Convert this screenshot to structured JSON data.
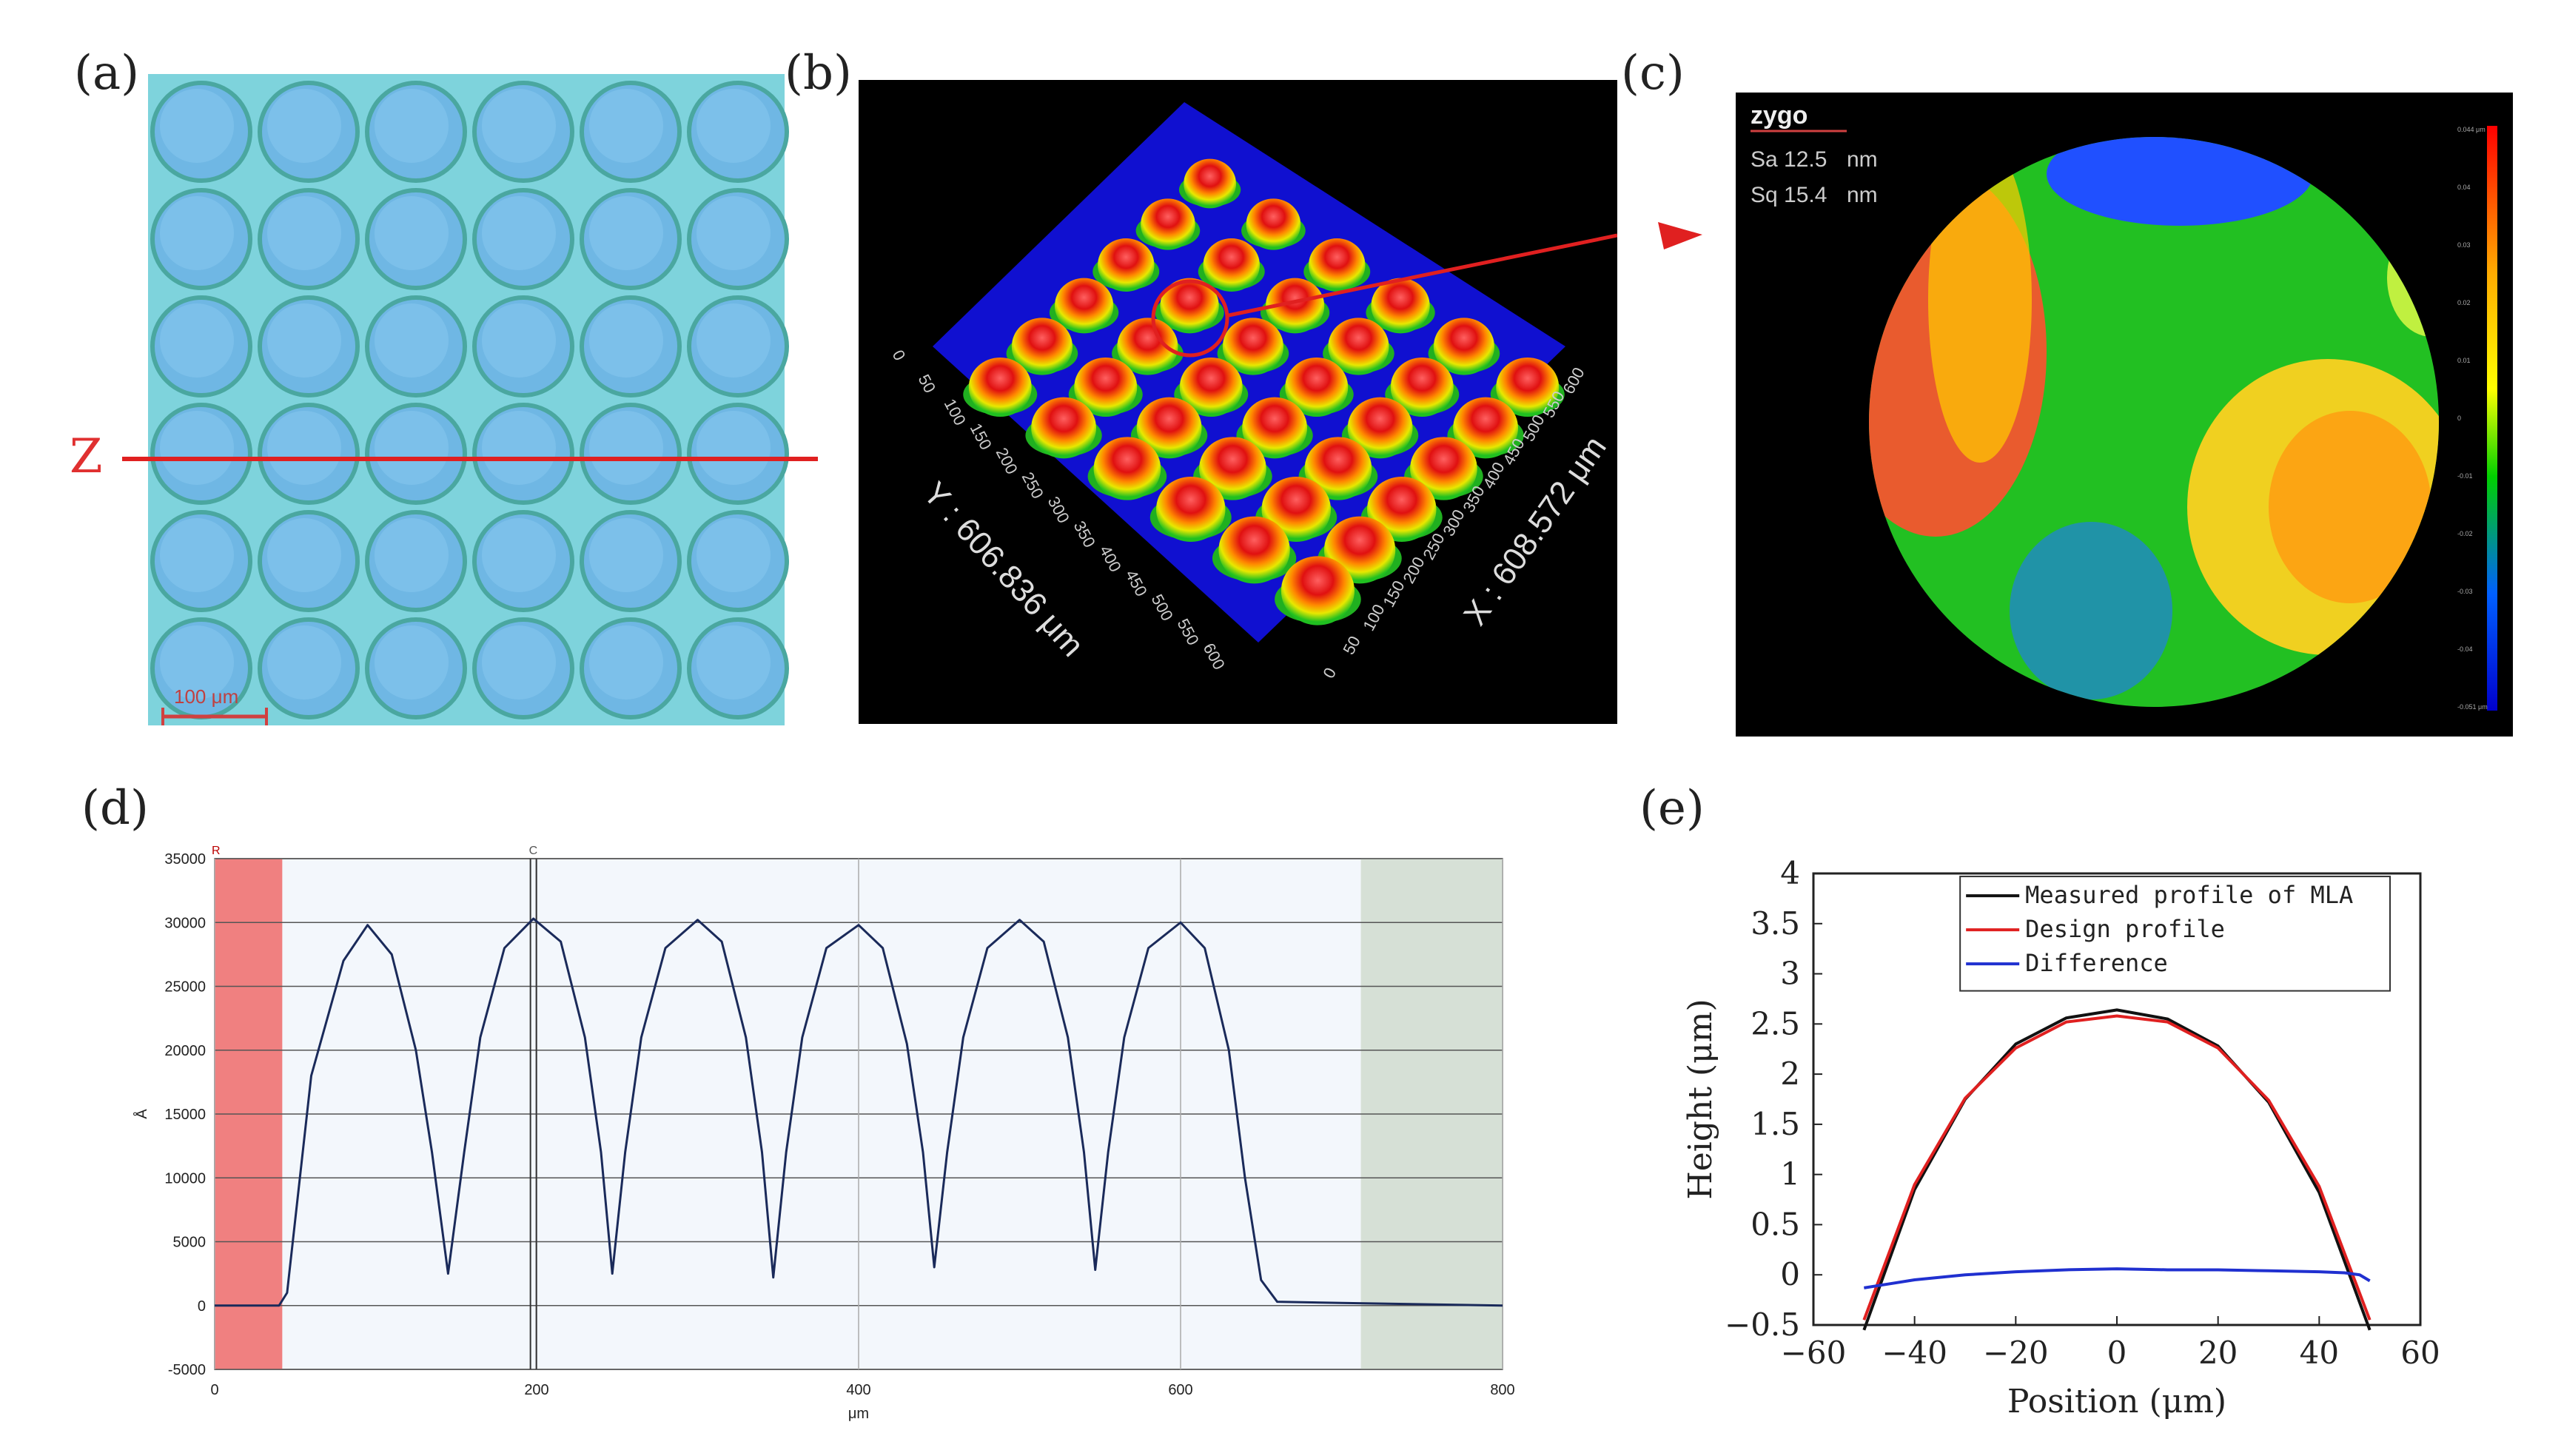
{
  "panels": {
    "a": {
      "label": "(a)",
      "z_label": "Z",
      "scale_bar": "100 μm"
    },
    "b": {
      "label": "(b)",
      "y_axis_label": "Y : 606.836 μm",
      "x_axis_label": "X : 608.572 μm",
      "y_ticks": [
        "0",
        "50",
        "100",
        "150",
        "200",
        "250",
        "300",
        "350",
        "400",
        "450",
        "500",
        "550",
        "600"
      ],
      "x_ticks": [
        "0",
        "50",
        "100",
        "150",
        "200",
        "250",
        "300",
        "350",
        "400",
        "450",
        "500",
        "550",
        "600"
      ]
    },
    "c": {
      "label": "(c)",
      "brand": "zygo",
      "sa_label": "Sa 12.5",
      "sa_unit": "nm",
      "sq_label": "Sq 15.4",
      "sq_unit": "nm",
      "scale_ticks": [
        "0.044 μm",
        "0.04",
        "0.03",
        "0.02",
        "0.01",
        "0",
        "-0.01",
        "-0.02",
        "-0.03",
        "-0.04",
        "-0.051 μm"
      ]
    },
    "d": {
      "label": "(d)"
    },
    "e": {
      "label": "(e)"
    }
  },
  "chart_data": [
    {
      "type": "line",
      "panel": "d",
      "xlabel": "μm",
      "ylabel": "Å",
      "xlim": [
        0,
        800
      ],
      "ylim": [
        -5000,
        35000
      ],
      "xticks": [
        "0",
        "200",
        "400",
        "600",
        "800"
      ],
      "yticks": [
        "-5000",
        "0",
        "5000",
        "10000",
        "15000",
        "20000",
        "25000",
        "30000",
        "35000"
      ],
      "markers": [
        "R",
        "C"
      ],
      "cursor_c_x": 198,
      "shaded_regions": [
        {
          "from": 0,
          "to": 42,
          "color": "#f08080"
        },
        {
          "from": 712,
          "to": 800,
          "color": "#d6e0d6"
        }
      ],
      "series": [
        {
          "x": [
            0,
            40,
            45,
            60,
            80,
            95,
            110,
            125,
            135,
            145,
            155,
            165,
            180,
            198,
            215,
            230,
            240,
            247,
            255,
            265,
            280,
            300,
            315,
            330,
            340,
            347,
            355,
            365,
            380,
            400,
            415,
            430,
            440,
            447,
            455,
            465,
            480,
            500,
            515,
            530,
            540,
            547,
            555,
            565,
            580,
            600,
            615,
            630,
            640,
            650,
            660,
            700,
            750,
            800
          ],
          "y": [
            0,
            0,
            1000,
            18000,
            27000,
            29800,
            27500,
            20000,
            12000,
            2500,
            12000,
            21000,
            28000,
            30300,
            28500,
            21000,
            12000,
            2500,
            12000,
            21000,
            28000,
            30200,
            28500,
            21000,
            12000,
            2200,
            12000,
            21000,
            28000,
            29800,
            28000,
            20500,
            12000,
            3000,
            12000,
            21000,
            28000,
            30200,
            28500,
            21000,
            12000,
            2800,
            12000,
            21000,
            28000,
            30000,
            28000,
            20000,
            10000,
            2000,
            300,
            200,
            100,
            0
          ]
        }
      ]
    },
    {
      "type": "line",
      "panel": "e",
      "xlabel": "Position (μm)",
      "ylabel": "Height (μm)",
      "xlim": [
        -60,
        60
      ],
      "ylim": [
        -0.5,
        4
      ],
      "xticks": [
        "−60",
        "−40",
        "−20",
        "0",
        "20",
        "40",
        "60"
      ],
      "yticks": [
        "−0.5",
        "0",
        "0.5",
        "1",
        "1.5",
        "2",
        "2.5",
        "3",
        "3.5",
        "4"
      ],
      "legend_position": "top-right",
      "series": [
        {
          "name": "Measured profile of MLA",
          "color": "#111111",
          "x": [
            -50,
            -40,
            -30,
            -20,
            -10,
            0,
            10,
            20,
            30,
            40,
            50
          ],
          "y": [
            -0.55,
            0.85,
            1.75,
            2.3,
            2.56,
            2.64,
            2.55,
            2.28,
            1.72,
            0.82,
            -0.55
          ]
        },
        {
          "name": "Design profile",
          "color": "#e02020",
          "x": [
            -50,
            -40,
            -30,
            -20,
            -10,
            0,
            10,
            20,
            30,
            40,
            50
          ],
          "y": [
            -0.45,
            0.9,
            1.76,
            2.26,
            2.52,
            2.58,
            2.52,
            2.26,
            1.74,
            0.88,
            -0.45
          ]
        },
        {
          "name": "Difference",
          "color": "#2030d0",
          "x": [
            -50,
            -45,
            -40,
            -30,
            -20,
            -10,
            0,
            10,
            20,
            30,
            40,
            45,
            48,
            50
          ],
          "y": [
            -0.13,
            -0.09,
            -0.05,
            0.0,
            0.03,
            0.05,
            0.06,
            0.05,
            0.05,
            0.04,
            0.03,
            0.02,
            0.0,
            -0.06
          ]
        }
      ]
    }
  ]
}
